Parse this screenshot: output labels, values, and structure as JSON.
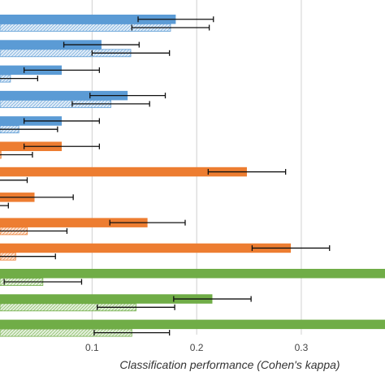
{
  "chart_data": {
    "type": "bar",
    "orientation": "horizontal",
    "xlabel": "Classification performance (Cohen's kappa)",
    "ylabel": "",
    "xticks": [
      "0.1",
      "0.2",
      "0.3"
    ],
    "xlim": [
      0.012,
      0.38
    ],
    "grid": true,
    "legend": "none",
    "groups": [
      {
        "color": "#5b9bd5",
        "bars": [
          {
            "solid": 0.18,
            "solid_err": 0.036,
            "hatched": 0.175,
            "hatched_err": 0.037
          },
          {
            "solid": 0.109,
            "solid_err": 0.036,
            "hatched": 0.137,
            "hatched_err": 0.037
          },
          {
            "solid": 0.071,
            "solid_err": 0.036,
            "hatched": 0.022,
            "hatched_err": 0.026
          },
          {
            "solid": 0.134,
            "solid_err": 0.036,
            "hatched": 0.118,
            "hatched_err": 0.037
          },
          {
            "solid": 0.071,
            "solid_err": 0.036,
            "hatched": 0.03,
            "hatched_err": 0.037
          }
        ]
      },
      {
        "color": "#ed7d31",
        "bars": [
          {
            "solid": 0.071,
            "solid_err": 0.036,
            "hatched": 0.013,
            "hatched_err": 0.03
          },
          {
            "solid": 0.248,
            "solid_err": 0.037,
            "hatched": 0.01,
            "hatched_err": 0.028
          },
          {
            "solid": 0.045,
            "solid_err": 0.037,
            "hatched": 0.005,
            "hatched_err": 0.015
          },
          {
            "solid": 0.153,
            "solid_err": 0.036,
            "hatched": 0.038,
            "hatched_err": 0.038
          },
          {
            "solid": 0.29,
            "solid_err": 0.037,
            "hatched": 0.027,
            "hatched_err": 0.038
          }
        ]
      },
      {
        "color": "#70ad47",
        "bars": [
          {
            "solid": 0.38,
            "solid_err": null,
            "hatched": 0.053,
            "hatched_err": 0.037
          },
          {
            "solid": 0.215,
            "solid_err": 0.037,
            "hatched": 0.142,
            "hatched_err": 0.037
          },
          {
            "solid": 0.38,
            "solid_err": null,
            "hatched": 0.138,
            "hatched_err": 0.036
          }
        ]
      }
    ]
  }
}
